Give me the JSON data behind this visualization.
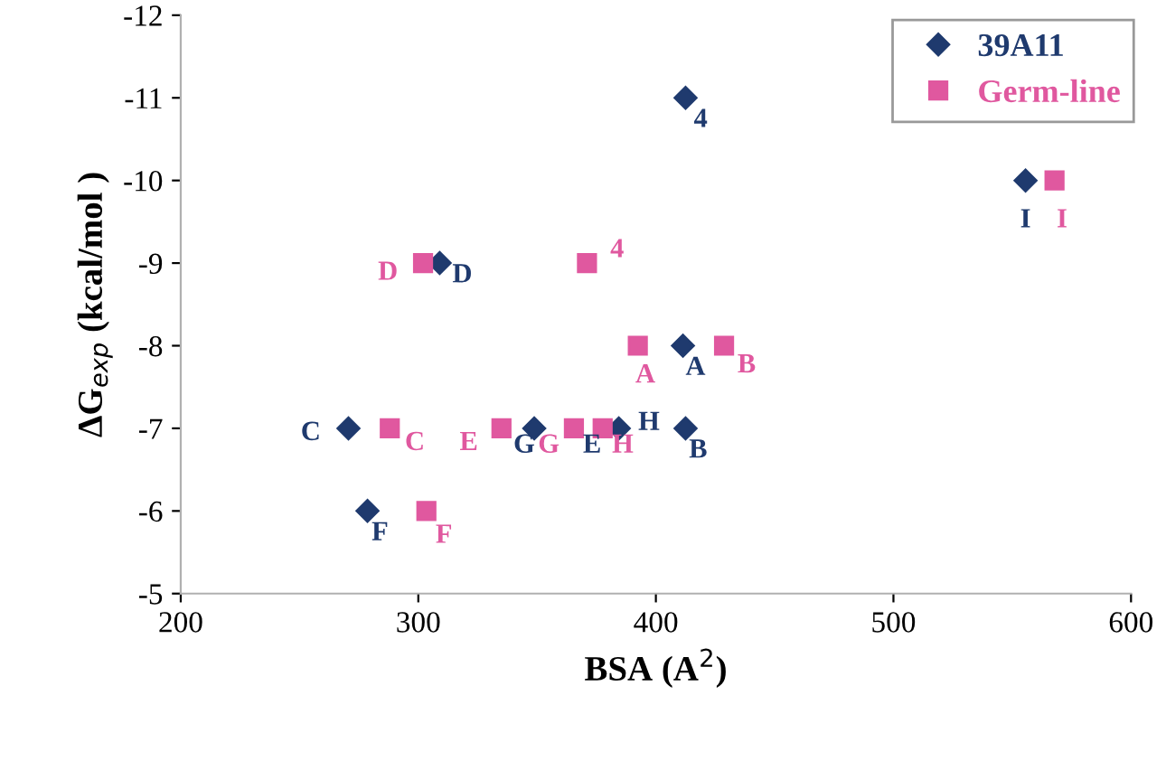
{
  "chart_data": {
    "type": "scatter",
    "xlabel": "BSA (A$^{2}$)",
    "ylabel": "ΔG$_{exp}$ (kcal/mol )",
    "xlim": [
      200,
      600
    ],
    "xticks": [
      200,
      300,
      400,
      500,
      600
    ],
    "ylim": [
      -5,
      -12
    ],
    "yticks": [
      -5,
      -6,
      -7,
      -8,
      -9,
      -10,
      -11,
      -12
    ],
    "grid": false,
    "legend": "top right",
    "series": [
      {
        "name": "39A11",
        "color": "#1f3a6e",
        "marker": "diamond",
        "x": [
          412.5,
          555.6,
          309,
          411.4,
          412.5,
          270.6,
          348.8,
          384.4,
          278.6
        ],
        "values": [
          -11,
          -10,
          -9,
          -8,
          -7,
          -7,
          -7,
          -7,
          -6
        ]
      },
      {
        "name": "Germ-line",
        "color": "#e0589f",
        "marker": "square",
        "x": [
          567.8,
          302,
          371,
          392.4,
          428.7,
          288,
          335,
          365.5,
          377.6,
          303.4
        ],
        "values": [
          -10,
          -9,
          -9,
          -8,
          -8,
          -7,
          -7,
          -7,
          -7,
          -6
        ]
      }
    ],
    "annotations": [
      {
        "text": "4",
        "x": 412.5,
        "y": -11
      },
      {
        "text": "I",
        "x": 555.6,
        "y": -10
      },
      {
        "text": "D",
        "x": 309,
        "y": -9
      },
      {
        "text": "A",
        "x": 411.4,
        "y": -8
      },
      {
        "text": "B",
        "x": 412.5,
        "y": -7
      },
      {
        "text": "C",
        "x": 270.6,
        "y": -7
      },
      {
        "text": "G",
        "x": 348.8,
        "y": -7
      },
      {
        "text": "H",
        "x": 384.4,
        "y": -7
      },
      {
        "text": "F",
        "x": 278.6,
        "y": -6
      },
      {
        "text": "E",
        "x": 370,
        "y": -7
      },
      {
        "text": "I",
        "x": 567.8,
        "y": -10
      },
      {
        "text": "D",
        "x": 302,
        "y": -9
      },
      {
        "text": "4",
        "x": 371,
        "y": -9
      },
      {
        "text": "A",
        "x": 392.4,
        "y": -8
      },
      {
        "text": "B",
        "x": 428.7,
        "y": -8
      },
      {
        "text": "C",
        "x": 288,
        "y": -7
      },
      {
        "text": "E",
        "x": 335,
        "y": -7
      },
      {
        "text": "G",
        "x": 365.5,
        "y": -7
      },
      {
        "text": "H",
        "x": 377.6,
        "y": -7
      },
      {
        "text": "F",
        "x": 303.4,
        "y": -6
      }
    ]
  }
}
